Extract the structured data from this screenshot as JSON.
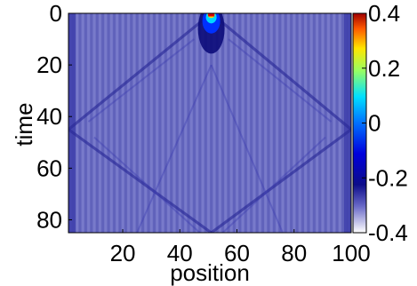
{
  "chart_data": {
    "type": "heatmap",
    "title": "",
    "xlabel": "position",
    "ylabel": "time",
    "xlim": [
      1,
      100
    ],
    "ylim": [
      0,
      85
    ],
    "y_direction": "top-down",
    "x_ticks": [
      "20",
      "40",
      "60",
      "80",
      "100"
    ],
    "y_ticks": [
      "0",
      "20",
      "40",
      "60",
      "80"
    ],
    "x_tick_values": [
      20,
      40,
      60,
      80,
      100
    ],
    "y_tick_values": [
      0,
      20,
      40,
      60,
      80
    ],
    "colorbar": {
      "range": [
        -0.4,
        0.4
      ],
      "ticks": [
        "0.4",
        "0.2",
        "0",
        "-0.2",
        "-0.4"
      ],
      "tick_values": [
        0.4,
        0.2,
        0,
        -0.2,
        -0.4
      ],
      "colormap": "jet-like (white low, dark blue, blue, cyan, yellow, red high)"
    },
    "features": {
      "source_position": 51,
      "peak_value": 0.4,
      "background_value": -0.26,
      "description": "localized peak near x=51 at t=0 spreading into a V-shaped wavefront that reflects off the boundaries around t=45"
    }
  }
}
